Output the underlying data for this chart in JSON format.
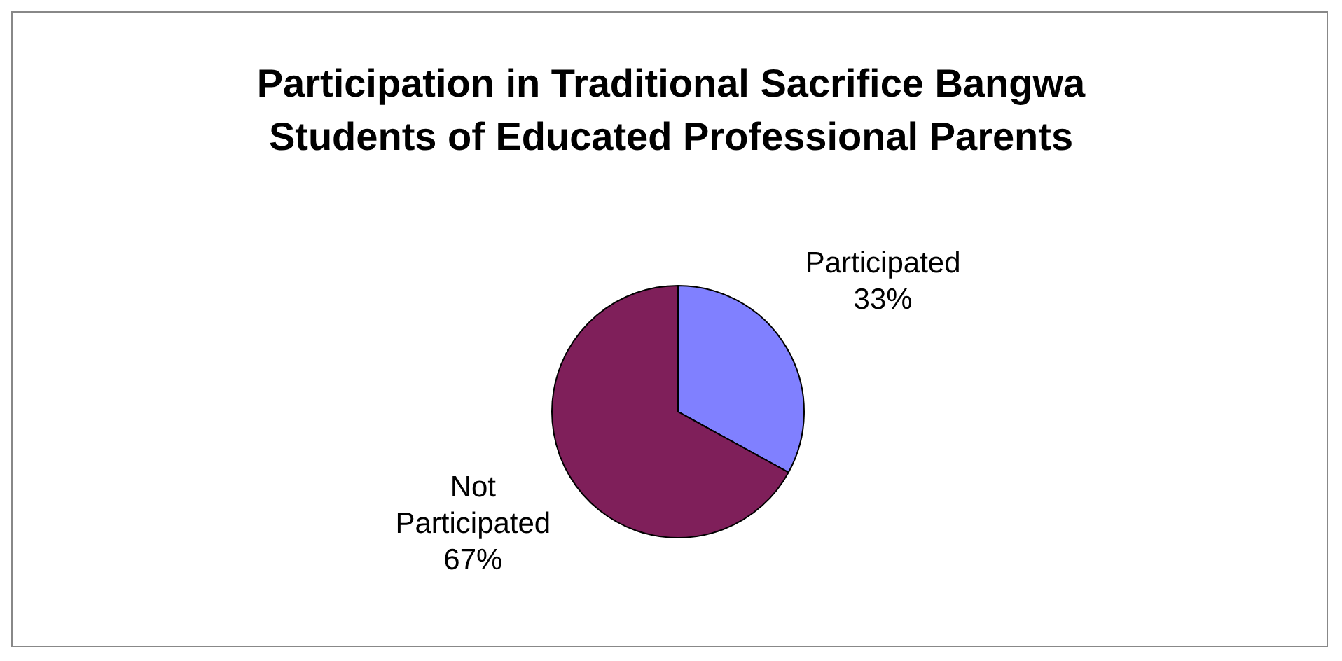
{
  "chart_data": {
    "type": "pie",
    "title": "Participation in Traditional Sacrifice Bangwa Students of Educated Professional Parents",
    "categories": [
      "Participated",
      "Not Participated"
    ],
    "values": [
      33,
      67
    ],
    "colors": [
      "#8080ff",
      "#7f1f5a"
    ],
    "value_labels": [
      "33%",
      "67%"
    ],
    "legend": false
  }
}
